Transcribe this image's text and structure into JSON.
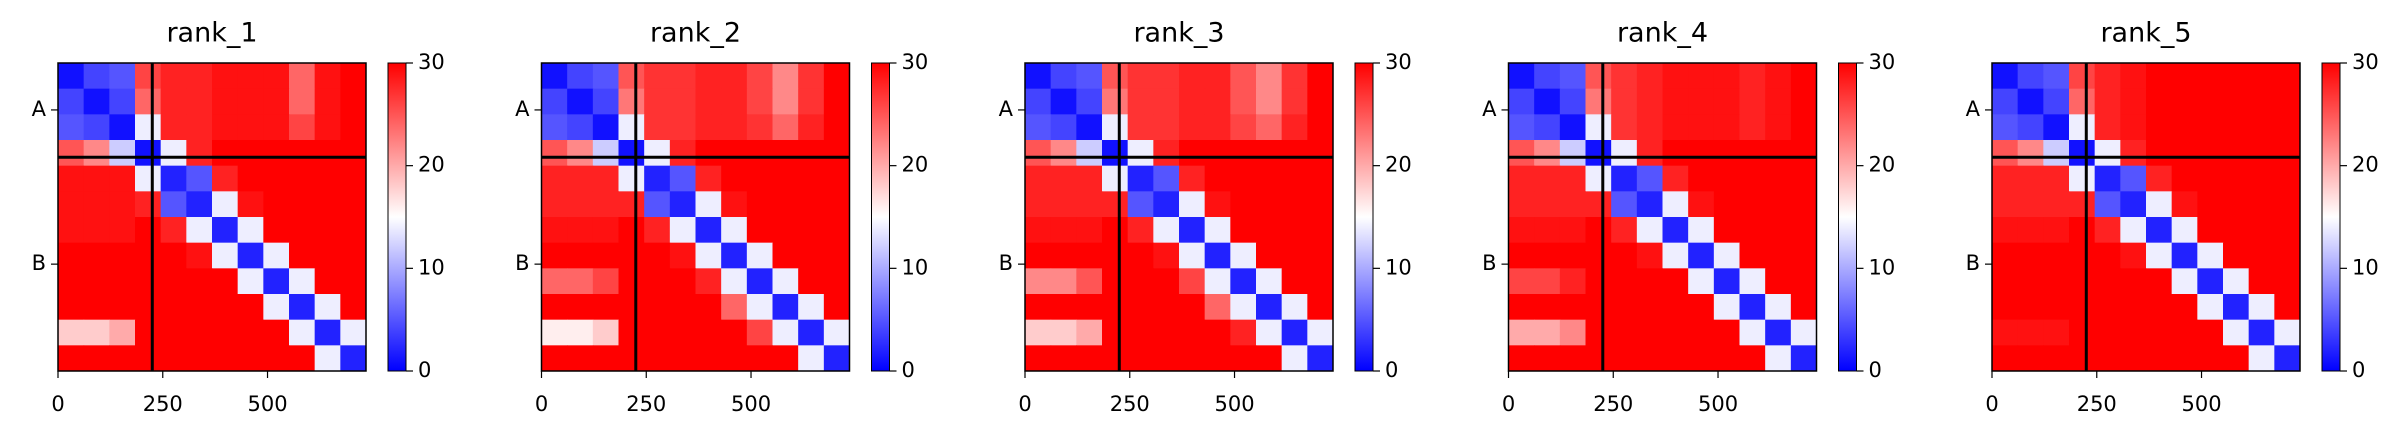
{
  "chart_data": [
    {
      "type": "heatmap",
      "title": "rank_1",
      "xlim": [
        0,
        735
      ],
      "ylim": [
        735,
        0
      ],
      "xticks": [
        0,
        250,
        500
      ],
      "yticks": [
        {
          "value": 112,
          "label": "A"
        },
        {
          "value": 480,
          "label": "B"
        }
      ],
      "boundaries": [
        225
      ],
      "clim": [
        0,
        30
      ],
      "cticks": [
        0,
        10,
        20,
        30
      ],
      "colormap": [
        "#0000ff",
        "#ffffff",
        "#ff0000"
      ],
      "matrix": [
        [
          1,
          4,
          5,
          26,
          28,
          28,
          29,
          29,
          29,
          24,
          29,
          30
        ],
        [
          4,
          1,
          4,
          24,
          28,
          28,
          29,
          29,
          29,
          24,
          29,
          30
        ],
        [
          5,
          4,
          1,
          14,
          28,
          28,
          29,
          29,
          29,
          26,
          29,
          30
        ],
        [
          25,
          22,
          12,
          1,
          14,
          28,
          30,
          30,
          30,
          30,
          30,
          30
        ],
        [
          29,
          29,
          29,
          14,
          2,
          5,
          28,
          30,
          30,
          30,
          30,
          30
        ],
        [
          29,
          29,
          29,
          28,
          5,
          2,
          14,
          29,
          30,
          30,
          30,
          30
        ],
        [
          29,
          29,
          29,
          30,
          28,
          14,
          2,
          14,
          30,
          30,
          30,
          30
        ],
        [
          30,
          30,
          30,
          30,
          30,
          29,
          14,
          2,
          14,
          30,
          30,
          30
        ],
        [
          30,
          30,
          30,
          30,
          30,
          30,
          30,
          14,
          2,
          14,
          30,
          30
        ],
        [
          30,
          30,
          30,
          30,
          30,
          30,
          30,
          30,
          14,
          2,
          14,
          30
        ],
        [
          18,
          18,
          20,
          30,
          30,
          30,
          30,
          30,
          30,
          14,
          2,
          14
        ],
        [
          30,
          30,
          30,
          30,
          30,
          30,
          30,
          30,
          30,
          30,
          14,
          2
        ]
      ]
    },
    {
      "type": "heatmap",
      "title": "rank_2",
      "xlim": [
        0,
        735
      ],
      "ylim": [
        735,
        0
      ],
      "xticks": [
        0,
        250,
        500
      ],
      "yticks": [
        {
          "value": 112,
          "label": "A"
        },
        {
          "value": 480,
          "label": "B"
        }
      ],
      "boundaries": [
        225
      ],
      "clim": [
        0,
        30
      ],
      "cticks": [
        0,
        10,
        20,
        30
      ],
      "colormap": [
        "#0000ff",
        "#ffffff",
        "#ff0000"
      ],
      "matrix": [
        [
          1,
          4,
          5,
          25,
          27,
          27,
          28,
          28,
          26,
          22,
          27,
          30
        ],
        [
          4,
          1,
          4,
          23,
          27,
          27,
          28,
          28,
          26,
          22,
          27,
          30
        ],
        [
          5,
          4,
          1,
          14,
          27,
          27,
          28,
          28,
          27,
          24,
          28,
          30
        ],
        [
          25,
          22,
          12,
          1,
          14,
          28,
          30,
          30,
          30,
          30,
          30,
          30
        ],
        [
          28,
          28,
          28,
          14,
          2,
          5,
          28,
          30,
          30,
          30,
          30,
          30
        ],
        [
          28,
          28,
          28,
          28,
          5,
          2,
          14,
          29,
          30,
          30,
          30,
          30
        ],
        [
          29,
          29,
          29,
          30,
          28,
          14,
          2,
          14,
          30,
          30,
          30,
          30
        ],
        [
          30,
          30,
          30,
          30,
          30,
          29,
          14,
          2,
          14,
          30,
          30,
          30
        ],
        [
          24,
          24,
          26,
          30,
          30,
          30,
          28,
          14,
          2,
          14,
          30,
          30
        ],
        [
          30,
          30,
          30,
          30,
          30,
          30,
          30,
          24,
          14,
          2,
          14,
          30
        ],
        [
          16,
          16,
          18,
          30,
          30,
          30,
          30,
          30,
          26,
          14,
          2,
          14
        ],
        [
          30,
          30,
          30,
          30,
          30,
          30,
          30,
          30,
          30,
          30,
          14,
          2
        ]
      ]
    },
    {
      "type": "heatmap",
      "title": "rank_3",
      "xlim": [
        0,
        735
      ],
      "ylim": [
        735,
        0
      ],
      "xticks": [
        0,
        250,
        500
      ],
      "yticks": [
        {
          "value": 112,
          "label": "A"
        },
        {
          "value": 480,
          "label": "B"
        }
      ],
      "boundaries": [
        225
      ],
      "clim": [
        0,
        30
      ],
      "cticks": [
        0,
        10,
        20,
        30
      ],
      "colormap": [
        "#0000ff",
        "#ffffff",
        "#ff0000"
      ],
      "matrix": [
        [
          1,
          4,
          5,
          25,
          27,
          27,
          28,
          28,
          25,
          22,
          27,
          30
        ],
        [
          4,
          1,
          4,
          23,
          27,
          27,
          28,
          28,
          25,
          22,
          27,
          30
        ],
        [
          5,
          4,
          1,
          14,
          27,
          27,
          28,
          28,
          26,
          24,
          28,
          30
        ],
        [
          25,
          22,
          12,
          1,
          14,
          28,
          30,
          30,
          30,
          30,
          30,
          30
        ],
        [
          28,
          28,
          28,
          14,
          2,
          5,
          28,
          30,
          30,
          30,
          30,
          30
        ],
        [
          28,
          28,
          28,
          28,
          5,
          2,
          14,
          29,
          30,
          30,
          30,
          30
        ],
        [
          29,
          29,
          29,
          30,
          28,
          14,
          2,
          14,
          30,
          30,
          30,
          30
        ],
        [
          30,
          30,
          30,
          30,
          30,
          29,
          14,
          2,
          14,
          30,
          30,
          30
        ],
        [
          22,
          22,
          25,
          30,
          30,
          30,
          26,
          14,
          2,
          14,
          30,
          30
        ],
        [
          30,
          30,
          30,
          30,
          30,
          30,
          30,
          24,
          14,
          2,
          14,
          30
        ],
        [
          18,
          18,
          20,
          30,
          30,
          30,
          30,
          30,
          28,
          14,
          2,
          14
        ],
        [
          30,
          30,
          30,
          30,
          30,
          30,
          30,
          30,
          30,
          30,
          14,
          2
        ]
      ]
    },
    {
      "type": "heatmap",
      "title": "rank_4",
      "xlim": [
        0,
        735
      ],
      "ylim": [
        735,
        0
      ],
      "xticks": [
        0,
        250,
        500
      ],
      "yticks": [
        {
          "value": 112,
          "label": "A"
        },
        {
          "value": 480,
          "label": "B"
        }
      ],
      "boundaries": [
        225
      ],
      "clim": [
        0,
        30
      ],
      "cticks": [
        0,
        10,
        20,
        30
      ],
      "colormap": [
        "#0000ff",
        "#ffffff",
        "#ff0000"
      ],
      "matrix": [
        [
          1,
          4,
          5,
          25,
          27,
          28,
          29,
          29,
          29,
          28,
          29,
          30
        ],
        [
          4,
          1,
          4,
          23,
          27,
          28,
          29,
          29,
          29,
          28,
          29,
          30
        ],
        [
          5,
          4,
          1,
          14,
          27,
          28,
          29,
          29,
          29,
          28,
          29,
          30
        ],
        [
          25,
          22,
          12,
          1,
          14,
          28,
          30,
          30,
          30,
          30,
          30,
          30
        ],
        [
          28,
          28,
          28,
          14,
          2,
          5,
          28,
          30,
          30,
          30,
          30,
          30
        ],
        [
          28,
          28,
          28,
          28,
          5,
          2,
          14,
          29,
          30,
          30,
          30,
          30
        ],
        [
          29,
          29,
          29,
          30,
          28,
          14,
          2,
          14,
          30,
          30,
          30,
          30
        ],
        [
          30,
          30,
          30,
          30,
          30,
          29,
          14,
          2,
          14,
          30,
          30,
          30
        ],
        [
          26,
          26,
          28,
          30,
          30,
          30,
          30,
          14,
          2,
          14,
          30,
          30
        ],
        [
          30,
          30,
          30,
          30,
          30,
          30,
          30,
          30,
          14,
          2,
          14,
          30
        ],
        [
          20,
          20,
          22,
          30,
          30,
          30,
          30,
          30,
          30,
          14,
          2,
          14
        ],
        [
          30,
          30,
          30,
          30,
          30,
          30,
          30,
          30,
          30,
          30,
          14,
          2
        ]
      ]
    },
    {
      "type": "heatmap",
      "title": "rank_5",
      "xlim": [
        0,
        735
      ],
      "ylim": [
        735,
        0
      ],
      "xticks": [
        0,
        250,
        500
      ],
      "yticks": [
        {
          "value": 112,
          "label": "A"
        },
        {
          "value": 480,
          "label": "B"
        }
      ],
      "boundaries": [
        225
      ],
      "clim": [
        0,
        30
      ],
      "cticks": [
        0,
        10,
        20,
        30
      ],
      "colormap": [
        "#0000ff",
        "#ffffff",
        "#ff0000"
      ],
      "matrix": [
        [
          1,
          4,
          5,
          26,
          28,
          29,
          30,
          30,
          30,
          30,
          30,
          30
        ],
        [
          4,
          1,
          4,
          24,
          28,
          29,
          30,
          30,
          30,
          30,
          30,
          30
        ],
        [
          5,
          4,
          1,
          14,
          28,
          29,
          30,
          30,
          30,
          30,
          30,
          30
        ],
        [
          25,
          22,
          12,
          1,
          14,
          28,
          30,
          30,
          30,
          30,
          30,
          30
        ],
        [
          28,
          28,
          28,
          14,
          2,
          5,
          28,
          30,
          30,
          30,
          30,
          30
        ],
        [
          28,
          28,
          28,
          28,
          5,
          2,
          14,
          29,
          30,
          30,
          30,
          30
        ],
        [
          29,
          29,
          29,
          30,
          28,
          14,
          2,
          14,
          30,
          30,
          30,
          30
        ],
        [
          30,
          30,
          30,
          30,
          30,
          29,
          14,
          2,
          14,
          30,
          30,
          30
        ],
        [
          30,
          30,
          30,
          30,
          30,
          30,
          30,
          14,
          2,
          14,
          30,
          30
        ],
        [
          30,
          30,
          30,
          30,
          30,
          30,
          30,
          30,
          14,
          2,
          14,
          30
        ],
        [
          29,
          29,
          29,
          30,
          30,
          30,
          30,
          30,
          30,
          14,
          2,
          14
        ],
        [
          30,
          30,
          30,
          30,
          30,
          30,
          30,
          30,
          30,
          30,
          14,
          2
        ]
      ]
    }
  ]
}
